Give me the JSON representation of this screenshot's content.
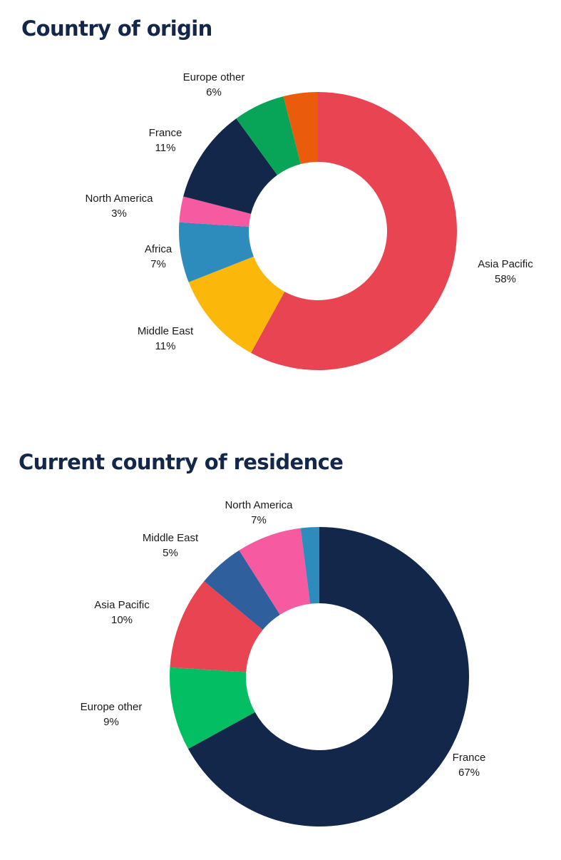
{
  "chart_data": [
    {
      "type": "pie",
      "variant": "donut",
      "title": "Country of origin",
      "start": "12 o'clock",
      "direction": "clockwise",
      "slices": [
        {
          "label": "Asia Pacific",
          "value": 58,
          "display": "58%",
          "color": "#e84452"
        },
        {
          "label": "Middle East",
          "value": 11,
          "display": "11%",
          "color": "#fbb70a"
        },
        {
          "label": "Africa",
          "value": 7,
          "display": "7%",
          "color": "#2e8cbd"
        },
        {
          "label": "North America",
          "value": 3,
          "display": "3%",
          "color": "#f65aa0"
        },
        {
          "label": "France",
          "value": 11,
          "display": "11%",
          "color": "#13274a"
        },
        {
          "label": "Europe other",
          "value": 6,
          "display": "6%",
          "color": "#08a457"
        },
        {
          "label": "",
          "value": 4,
          "display": "",
          "color": "#ea5c0c"
        }
      ]
    },
    {
      "type": "pie",
      "variant": "donut",
      "title": "Current country of residence",
      "start": "12 o'clock",
      "direction": "clockwise",
      "slices": [
        {
          "label": "France",
          "value": 67,
          "display": "67%",
          "color": "#13274a"
        },
        {
          "label": "Europe other",
          "value": 9,
          "display": "9%",
          "color": "#04be64"
        },
        {
          "label": "Asia Pacific",
          "value": 10,
          "display": "10%",
          "color": "#e84452"
        },
        {
          "label": "Middle East",
          "value": 5,
          "display": "5%",
          "color": "#2f5f9c"
        },
        {
          "label": "North America",
          "value": 7,
          "display": "7%",
          "color": "#f65aa0"
        },
        {
          "label": "",
          "value": 2,
          "display": "",
          "color": "#2e8cbd"
        }
      ]
    }
  ]
}
